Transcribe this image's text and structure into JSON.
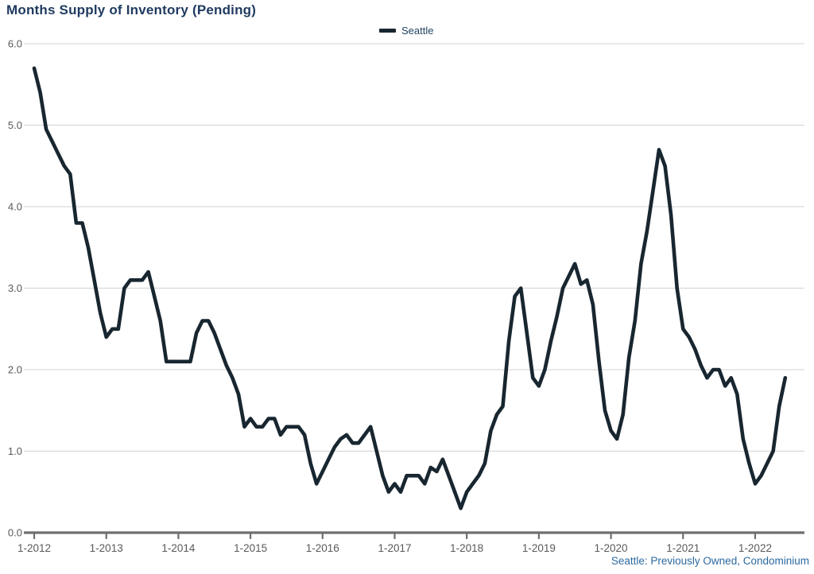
{
  "title": "Months Supply of Inventory (Pending)",
  "legend": {
    "label": "Seattle"
  },
  "footnote": "Seattle: Previously Owned, Condominium",
  "colors": {
    "line": "#182630",
    "title_text": "#1f3a5f",
    "legend_text": "#1f3f5f",
    "footnote_text": "#2c6aa0",
    "axis_text": "#595959",
    "gridline": "#d9d9d9",
    "axis_line": "#6e6e6e",
    "background": "#ffffff"
  },
  "chart_data": {
    "type": "line",
    "title": "Months Supply of Inventory (Pending)",
    "series": [
      {
        "name": "Seattle",
        "start": "1-2012",
        "frequency": "monthly",
        "values": [
          5.7,
          5.4,
          4.95,
          4.8,
          4.65,
          4.5,
          4.4,
          3.8,
          3.8,
          3.5,
          3.1,
          2.7,
          2.4,
          2.5,
          2.5,
          3.0,
          3.1,
          3.1,
          3.1,
          3.2,
          2.9,
          2.6,
          2.1,
          2.1,
          2.1,
          2.1,
          2.1,
          2.45,
          2.6,
          2.6,
          2.45,
          2.25,
          2.05,
          1.9,
          1.7,
          1.3,
          1.4,
          1.3,
          1.3,
          1.4,
          1.4,
          1.2,
          1.3,
          1.3,
          1.3,
          1.2,
          0.85,
          0.6,
          0.75,
          0.9,
          1.05,
          1.15,
          1.2,
          1.1,
          1.1,
          1.2,
          1.3,
          1.0,
          0.7,
          0.5,
          0.6,
          0.5,
          0.7,
          0.7,
          0.7,
          0.6,
          0.8,
          0.75,
          0.9,
          0.7,
          0.5,
          0.3,
          0.5,
          0.6,
          0.7,
          0.85,
          1.25,
          1.45,
          1.55,
          2.35,
          2.9,
          3.0,
          2.45,
          1.9,
          1.8,
          2.0,
          2.35,
          2.65,
          3.0,
          3.15,
          3.3,
          3.05,
          3.1,
          2.8,
          2.1,
          1.5,
          1.25,
          1.15,
          1.45,
          2.15,
          2.6,
          3.3,
          3.7,
          4.2,
          4.7,
          4.5,
          3.9,
          3.0,
          2.5,
          2.4,
          2.25,
          2.05,
          1.9,
          2.0,
          2.0,
          1.8,
          1.9,
          1.7,
          1.15,
          0.85,
          0.6,
          0.7,
          0.85,
          1.0,
          1.55,
          1.9
        ]
      }
    ],
    "x_tick_month_indices": [
      0,
      12,
      24,
      36,
      48,
      60,
      72,
      84,
      96,
      108,
      120
    ],
    "x_tick_labels": [
      "1-2012",
      "1-2013",
      "1-2014",
      "1-2015",
      "1-2016",
      "1-2017",
      "1-2018",
      "1-2019",
      "1-2020",
      "1-2021",
      "1-2022"
    ],
    "y_ticks": [
      0,
      1,
      2,
      3,
      4,
      5,
      6
    ],
    "y_tick_labels": [
      "0.0",
      "1.0",
      "2.0",
      "3.0",
      "4.0",
      "5.0",
      "6.0"
    ],
    "ylim": [
      0,
      6
    ],
    "grid": "horizontal",
    "legend_position": "top-center"
  }
}
